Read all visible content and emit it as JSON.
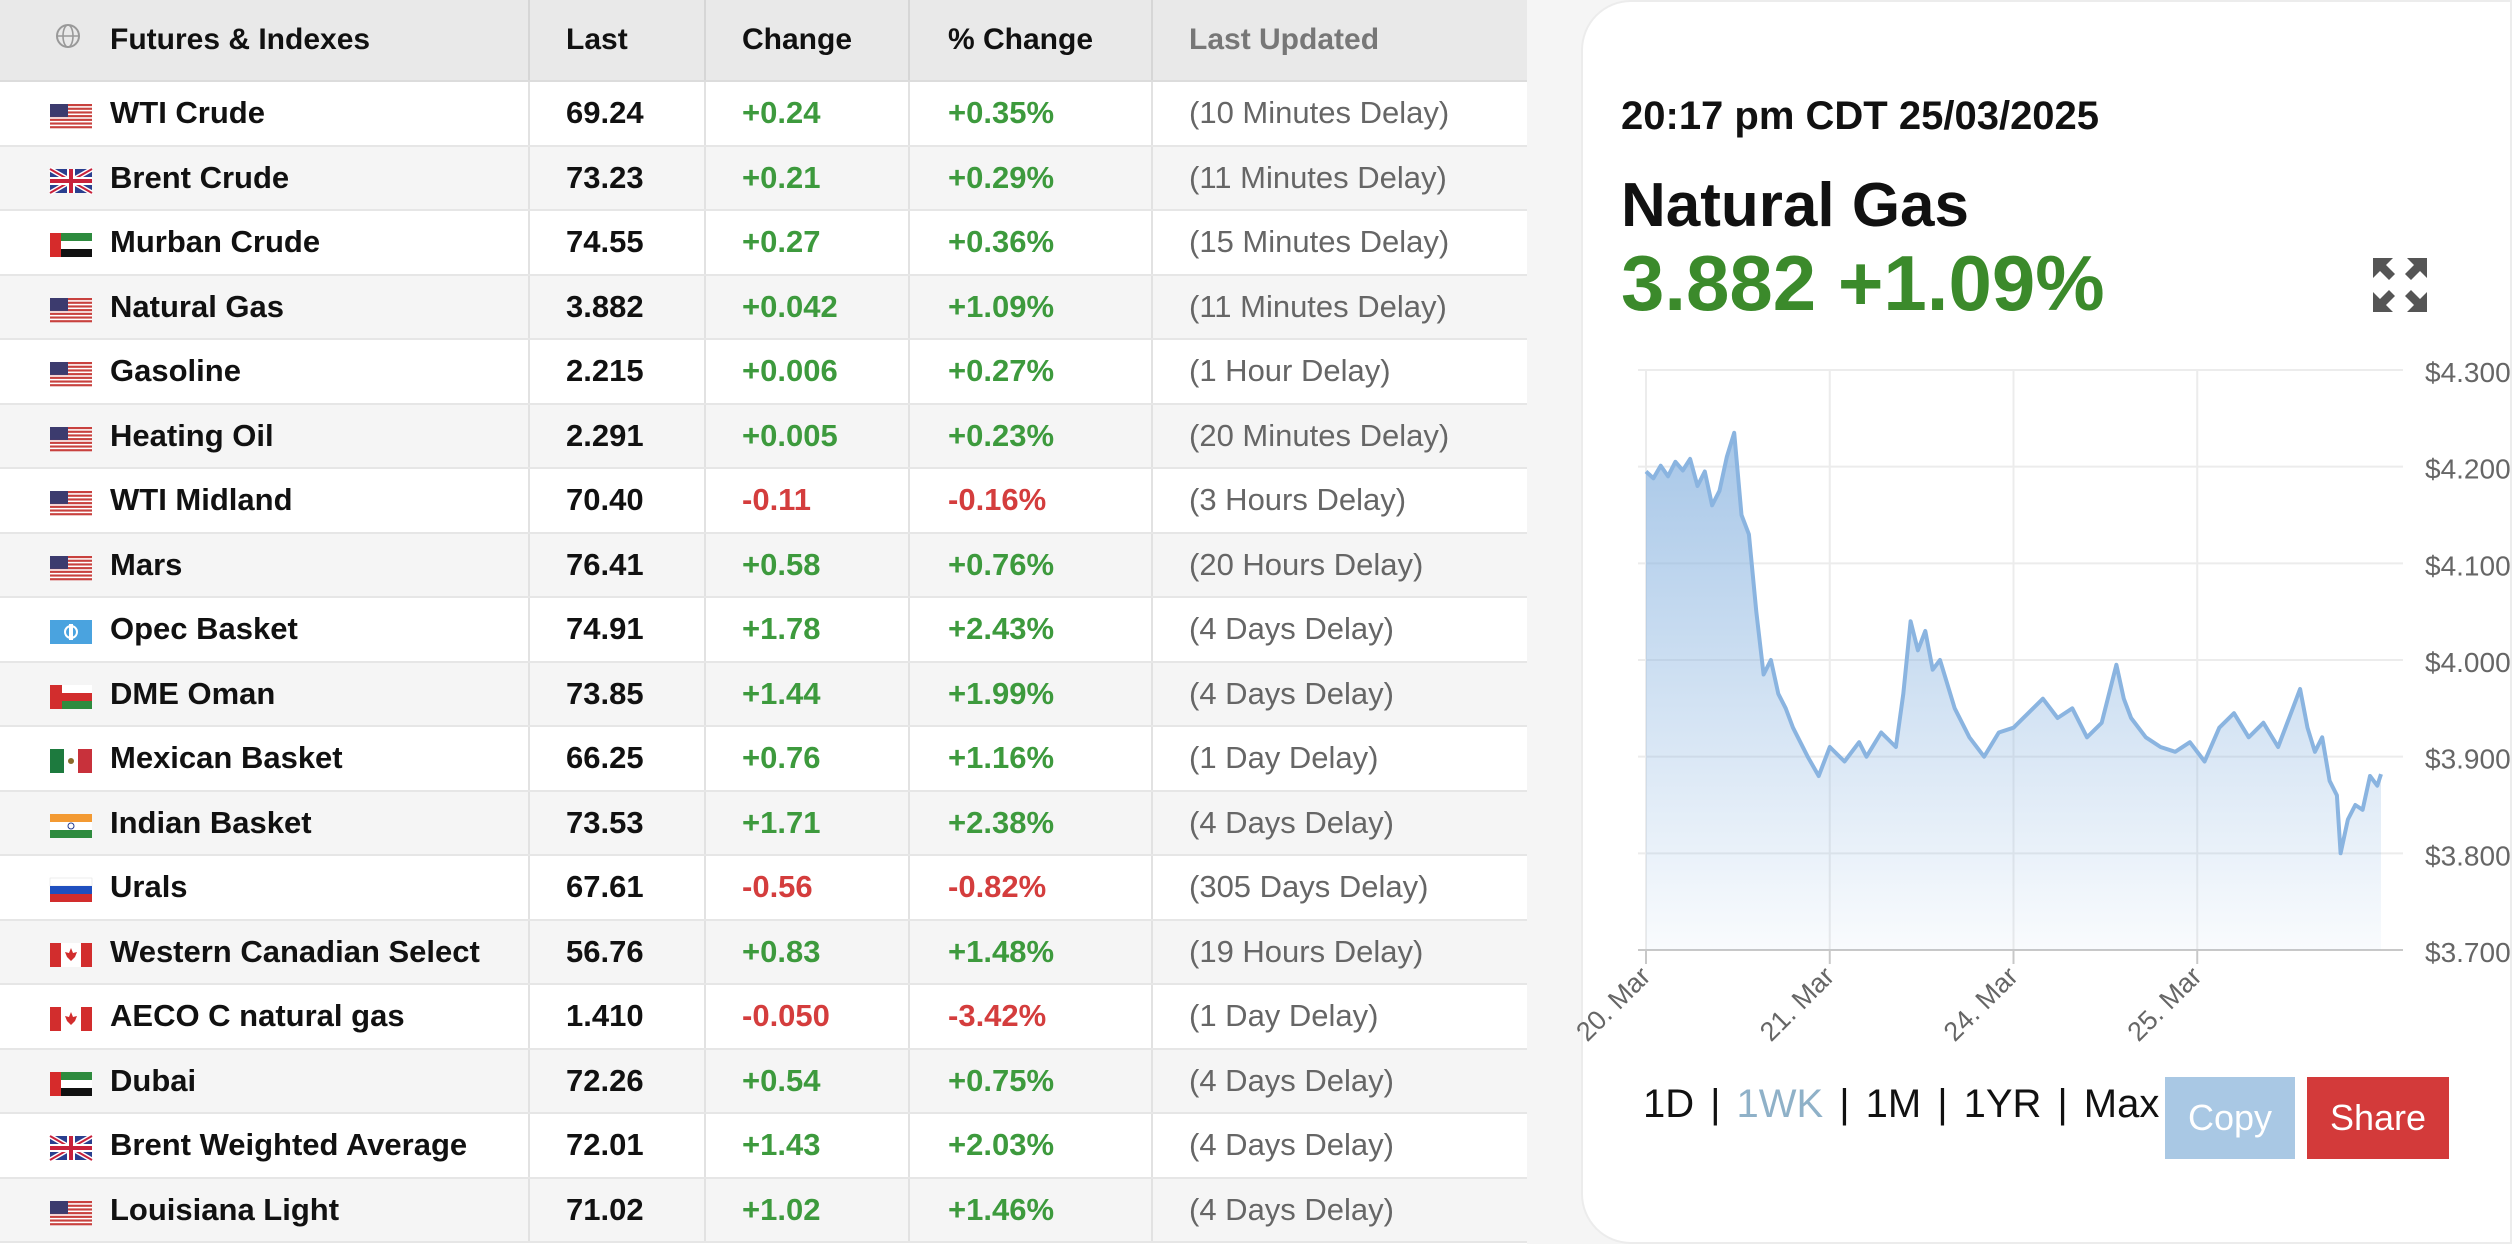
{
  "table": {
    "headers": {
      "name": "Futures & Indexes",
      "last": "Last",
      "change": "Change",
      "pct": "% Change",
      "updated": "Last Updated"
    },
    "rows": [
      {
        "flag": "us",
        "name": "WTI Crude",
        "last": "69.24",
        "change": "+0.24",
        "pct": "+0.35%",
        "updated": "(10 Minutes Delay)",
        "dir": "up"
      },
      {
        "flag": "uk",
        "name": "Brent Crude",
        "last": "73.23",
        "change": "+0.21",
        "pct": "+0.29%",
        "updated": "(11 Minutes Delay)",
        "dir": "up"
      },
      {
        "flag": "ae",
        "name": "Murban Crude",
        "last": "74.55",
        "change": "+0.27",
        "pct": "+0.36%",
        "updated": "(15 Minutes Delay)",
        "dir": "up"
      },
      {
        "flag": "us",
        "name": "Natural Gas",
        "last": "3.882",
        "change": "+0.042",
        "pct": "+1.09%",
        "updated": "(11 Minutes Delay)",
        "dir": "up"
      },
      {
        "flag": "us",
        "name": "Gasoline",
        "last": "2.215",
        "change": "+0.006",
        "pct": "+0.27%",
        "updated": "(1 Hour Delay)",
        "dir": "up"
      },
      {
        "flag": "us",
        "name": "Heating Oil",
        "last": "2.291",
        "change": "+0.005",
        "pct": "+0.23%",
        "updated": "(20 Minutes Delay)",
        "dir": "up"
      },
      {
        "flag": "us",
        "name": "WTI Midland",
        "last": "70.40",
        "change": "-0.11",
        "pct": "-0.16%",
        "updated": "(3 Hours Delay)",
        "dir": "down"
      },
      {
        "flag": "us",
        "name": "Mars",
        "last": "76.41",
        "change": "+0.58",
        "pct": "+0.76%",
        "updated": "(20 Hours Delay)",
        "dir": "up"
      },
      {
        "flag": "opec",
        "name": "Opec Basket",
        "last": "74.91",
        "change": "+1.78",
        "pct": "+2.43%",
        "updated": "(4 Days Delay)",
        "dir": "up"
      },
      {
        "flag": "om",
        "name": "DME Oman",
        "last": "73.85",
        "change": "+1.44",
        "pct": "+1.99%",
        "updated": "(4 Days Delay)",
        "dir": "up"
      },
      {
        "flag": "mx",
        "name": "Mexican Basket",
        "last": "66.25",
        "change": "+0.76",
        "pct": "+1.16%",
        "updated": "(1 Day Delay)",
        "dir": "up"
      },
      {
        "flag": "in",
        "name": "Indian Basket",
        "last": "73.53",
        "change": "+1.71",
        "pct": "+2.38%",
        "updated": "(4 Days Delay)",
        "dir": "up"
      },
      {
        "flag": "ru",
        "name": "Urals",
        "last": "67.61",
        "change": "-0.56",
        "pct": "-0.82%",
        "updated": "(305 Days Delay)",
        "dir": "down"
      },
      {
        "flag": "ca",
        "name": "Western Canadian Select",
        "last": "56.76",
        "change": "+0.83",
        "pct": "+1.48%",
        "updated": "(19 Hours Delay)",
        "dir": "up"
      },
      {
        "flag": "ca",
        "name": "AECO C natural gas",
        "last": "1.410",
        "change": "-0.050",
        "pct": "-3.42%",
        "updated": "(1 Day Delay)",
        "dir": "down"
      },
      {
        "flag": "ae",
        "name": "Dubai",
        "last": "72.26",
        "change": "+0.54",
        "pct": "+0.75%",
        "updated": "(4 Days Delay)",
        "dir": "up"
      },
      {
        "flag": "uk",
        "name": "Brent Weighted Average",
        "last": "72.01",
        "change": "+1.43",
        "pct": "+2.03%",
        "updated": "(4 Days Delay)",
        "dir": "up"
      },
      {
        "flag": "us",
        "name": "Louisiana Light",
        "last": "71.02",
        "change": "+1.02",
        "pct": "+1.46%",
        "updated": "(4 Days Delay)",
        "dir": "up"
      }
    ]
  },
  "card": {
    "timestamp": "20:17 pm CDT 25/03/2025",
    "name": "Natural Gas",
    "price": "3.882 +1.09%",
    "ranges": [
      "1D",
      "1WK",
      "1M",
      "1YR",
      "Max"
    ],
    "active_range": "1WK",
    "copy_label": "Copy",
    "share_label": "Share"
  },
  "colors": {
    "up": "#3d9a3d",
    "down": "#d43d3d",
    "price": "#3b8a2b",
    "line": "#8ab4e0",
    "copy": "#a9c8e4",
    "share": "#d33a3a"
  },
  "chart_data": {
    "type": "area",
    "title": "",
    "xlabel": "",
    "ylabel": "",
    "x_ticks": [
      "20. Mar",
      "21. Mar",
      "24. Mar",
      "25. Mar"
    ],
    "y_ticks": [
      "$4.300",
      "$4.200",
      "$4.100",
      "$4.000",
      "$3.900",
      "$3.800",
      "$3.700"
    ],
    "ylim": [
      3.7,
      4.3
    ],
    "grid": true,
    "series": [
      {
        "name": "",
        "points": [
          [
            0.0,
            4.195
          ],
          [
            0.01,
            4.188
          ],
          [
            0.02,
            4.201
          ],
          [
            0.03,
            4.19
          ],
          [
            0.04,
            4.205
          ],
          [
            0.05,
            4.196
          ],
          [
            0.06,
            4.208
          ],
          [
            0.07,
            4.18
          ],
          [
            0.08,
            4.195
          ],
          [
            0.09,
            4.16
          ],
          [
            0.1,
            4.175
          ],
          [
            0.11,
            4.21
          ],
          [
            0.12,
            4.235
          ],
          [
            0.13,
            4.15
          ],
          [
            0.14,
            4.13
          ],
          [
            0.15,
            4.05
          ],
          [
            0.16,
            3.985
          ],
          [
            0.17,
            4.0
          ],
          [
            0.18,
            3.965
          ],
          [
            0.19,
            3.95
          ],
          [
            0.2,
            3.93
          ],
          [
            0.22,
            3.9
          ],
          [
            0.235,
            3.88
          ],
          [
            0.25,
            3.91
          ],
          [
            0.27,
            3.895
          ],
          [
            0.29,
            3.915
          ],
          [
            0.3,
            3.9
          ],
          [
            0.32,
            3.925
          ],
          [
            0.34,
            3.91
          ],
          [
            0.35,
            3.965
          ],
          [
            0.36,
            4.04
          ],
          [
            0.37,
            4.01
          ],
          [
            0.38,
            4.03
          ],
          [
            0.39,
            3.99
          ],
          [
            0.4,
            4.0
          ],
          [
            0.42,
            3.95
          ],
          [
            0.44,
            3.92
          ],
          [
            0.46,
            3.9
          ],
          [
            0.48,
            3.925
          ],
          [
            0.5,
            3.93
          ],
          [
            0.52,
            3.945
          ],
          [
            0.54,
            3.96
          ],
          [
            0.56,
            3.94
          ],
          [
            0.58,
            3.95
          ],
          [
            0.6,
            3.92
          ],
          [
            0.62,
            3.935
          ],
          [
            0.64,
            3.995
          ],
          [
            0.65,
            3.96
          ],
          [
            0.66,
            3.94
          ],
          [
            0.68,
            3.92
          ],
          [
            0.7,
            3.91
          ],
          [
            0.72,
            3.905
          ],
          [
            0.74,
            3.915
          ],
          [
            0.76,
            3.895
          ],
          [
            0.78,
            3.93
          ],
          [
            0.8,
            3.945
          ],
          [
            0.82,
            3.92
          ],
          [
            0.84,
            3.935
          ],
          [
            0.86,
            3.91
          ],
          [
            0.88,
            3.95
          ],
          [
            0.89,
            3.97
          ],
          [
            0.9,
            3.93
          ],
          [
            0.91,
            3.905
          ],
          [
            0.92,
            3.92
          ],
          [
            0.93,
            3.875
          ],
          [
            0.94,
            3.86
          ],
          [
            0.945,
            3.8
          ],
          [
            0.955,
            3.835
          ],
          [
            0.965,
            3.85
          ],
          [
            0.975,
            3.845
          ],
          [
            0.985,
            3.88
          ],
          [
            0.995,
            3.87
          ],
          [
            1.0,
            3.882
          ]
        ]
      }
    ]
  }
}
